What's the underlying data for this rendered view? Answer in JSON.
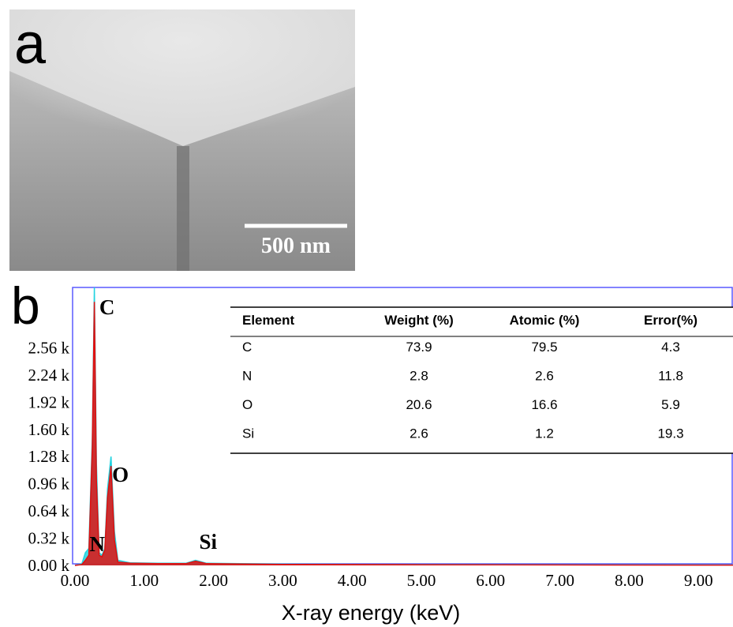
{
  "panel_a": {
    "label": "a",
    "scale_bar": "500 nm"
  },
  "chart_data": {
    "type": "line",
    "label": "b",
    "x_label": "X-ray energy (keV)",
    "x": [
      0,
      0.1,
      0.15,
      0.2,
      0.25,
      0.28,
      0.31,
      0.35,
      0.39,
      0.43,
      0.47,
      0.52,
      0.57,
      0.62,
      0.8,
      1.2,
      1.6,
      1.74,
      1.9,
      3,
      5,
      7,
      9.5
    ],
    "series": [
      {
        "color": "#22d3e0",
        "values": [
          0,
          20,
          150,
          200,
          1500,
          3270,
          1200,
          150,
          120,
          200,
          900,
          1280,
          400,
          60,
          30,
          25,
          25,
          60,
          25,
          15,
          10,
          8,
          5
        ]
      },
      {
        "color": "#e01010",
        "values": [
          0,
          10,
          60,
          120,
          1400,
          3100,
          1000,
          120,
          100,
          180,
          800,
          1170,
          300,
          40,
          25,
          20,
          20,
          50,
          20,
          12,
          8,
          6,
          4
        ]
      }
    ],
    "annotations": [
      {
        "text": "C",
        "x": 0.28
      },
      {
        "text": "O",
        "x": 0.52
      },
      {
        "text": "N",
        "x": 0.39
      },
      {
        "text": "Si",
        "x": 1.74
      }
    ],
    "xlim": [
      0,
      9.5
    ],
    "xticks": [
      {
        "value": 0,
        "label": "0.00"
      },
      {
        "value": 1,
        "label": "1.00"
      },
      {
        "value": 2,
        "label": "2.00"
      },
      {
        "value": 3,
        "label": "3.00"
      },
      {
        "value": 4,
        "label": "4.00"
      },
      {
        "value": 5,
        "label": "5.00"
      },
      {
        "value": 6,
        "label": "6.00"
      },
      {
        "value": 7,
        "label": "7.00"
      },
      {
        "value": 8,
        "label": "8.00"
      },
      {
        "value": 9,
        "label": "9.00"
      }
    ],
    "ylim": [
      0,
      3270
    ],
    "yticks": [
      {
        "value": 0,
        "label": "0.00 k"
      },
      {
        "value": 320,
        "label": "0.32 k"
      },
      {
        "value": 640,
        "label": "0.64 k"
      },
      {
        "value": 960,
        "label": "0.96 k"
      },
      {
        "value": 1280,
        "label": "1.28 k"
      },
      {
        "value": 1600,
        "label": "1.60 k"
      },
      {
        "value": 1920,
        "label": "1.92 k"
      },
      {
        "value": 2240,
        "label": "2.24 k"
      },
      {
        "value": 2560,
        "label": "2.56 k"
      }
    ]
  },
  "table": {
    "columns": [
      "Element",
      "Weight (%)",
      "Atomic (%)",
      "Error(%)"
    ],
    "rows": [
      [
        "C",
        "73.9",
        "79.5",
        "4.3"
      ],
      [
        "N",
        "2.8",
        "2.6",
        "11.8"
      ],
      [
        "O",
        "20.6",
        "16.6",
        "5.9"
      ],
      [
        "Si",
        "2.6",
        "1.2",
        "19.3"
      ]
    ]
  }
}
